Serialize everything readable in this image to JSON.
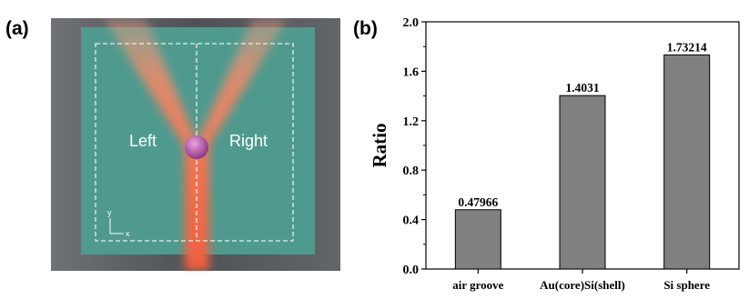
{
  "panel_a": {
    "label": "(a)",
    "left_text": "Left",
    "right_text": "Right",
    "axis_y": "y",
    "axis_x": "x",
    "colors": {
      "background": "#585d63",
      "substrate": "#4f9a8f",
      "beam": "#f07a58",
      "sphere": "#b25aa8"
    }
  },
  "panel_b": {
    "label": "(b)"
  },
  "chart_data": {
    "type": "bar",
    "categories": [
      "air groove",
      "Au(core)Si(shell)",
      "Si sphere"
    ],
    "values": [
      0.47966,
      1.4031,
      1.73214
    ],
    "value_labels": [
      "0.47966",
      "1.4031",
      "1.73214"
    ],
    "ylabel": "Ratio",
    "ylim": [
      0,
      2.0
    ],
    "yticks": [
      0.0,
      0.4,
      0.8,
      1.2,
      1.6,
      2.0
    ],
    "ytick_labels": [
      "0.0",
      "0.4",
      "0.8",
      "1.2",
      "1.6",
      "2.0"
    ],
    "grid": false,
    "bar_color": "#808080"
  }
}
